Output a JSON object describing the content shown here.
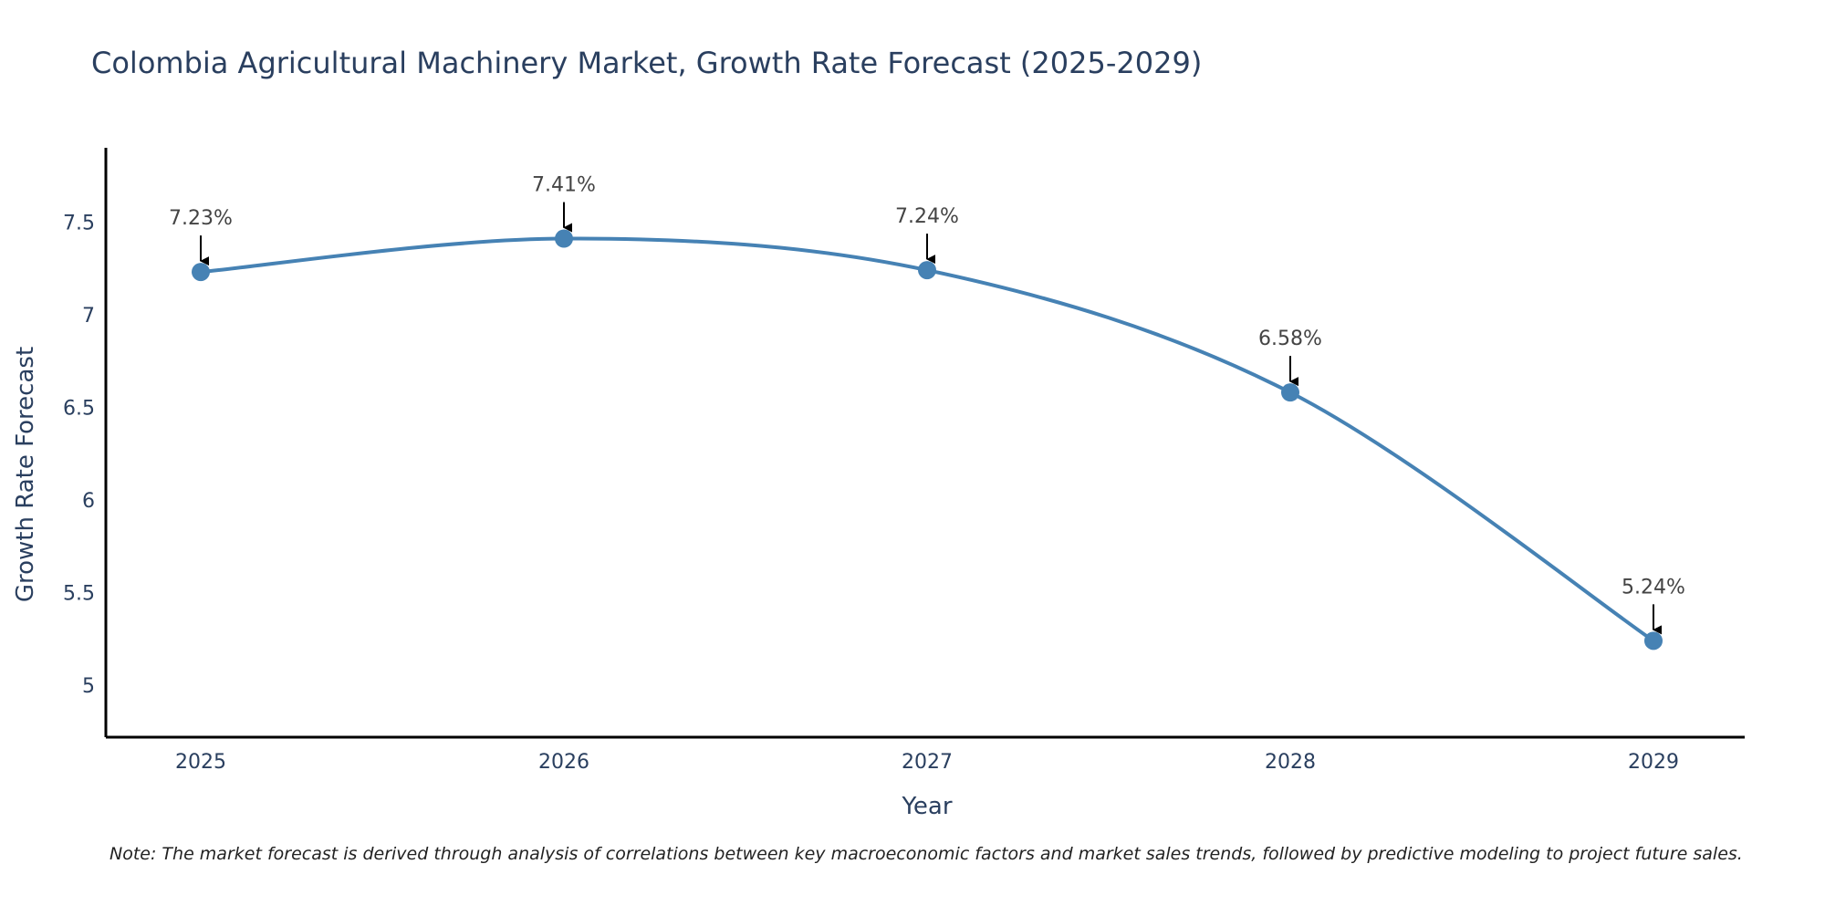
{
  "chart_data": {
    "type": "line",
    "title": "Colombia Agricultural Machinery Market, Growth Rate Forecast (2025-2029)",
    "xlabel": "Year",
    "ylabel": "Growth Rate Forecast",
    "categories": [
      "2025",
      "2026",
      "2027",
      "2028",
      "2029"
    ],
    "series": [
      {
        "name": "Growth Rate Forecast",
        "values": [
          7.23,
          7.41,
          7.24,
          6.58,
          5.24
        ]
      }
    ],
    "data_labels": [
      "7.23%",
      "7.41%",
      "7.24%",
      "6.58%",
      "5.24%"
    ],
    "yticks": [
      5,
      5.5,
      6,
      6.5,
      7,
      7.5
    ],
    "ytick_labels": [
      "5",
      "5.5",
      "6",
      "6.5",
      "7",
      "7.5"
    ],
    "ylim": [
      4.72,
      7.9
    ],
    "grid": false,
    "line_color": "#4682b4",
    "text_color": "#2a3f5f",
    "note": "Note: The market forecast is derived through analysis of correlations between key macroeconomic factors and market sales trends, followed by predictive modeling to project future sales."
  }
}
